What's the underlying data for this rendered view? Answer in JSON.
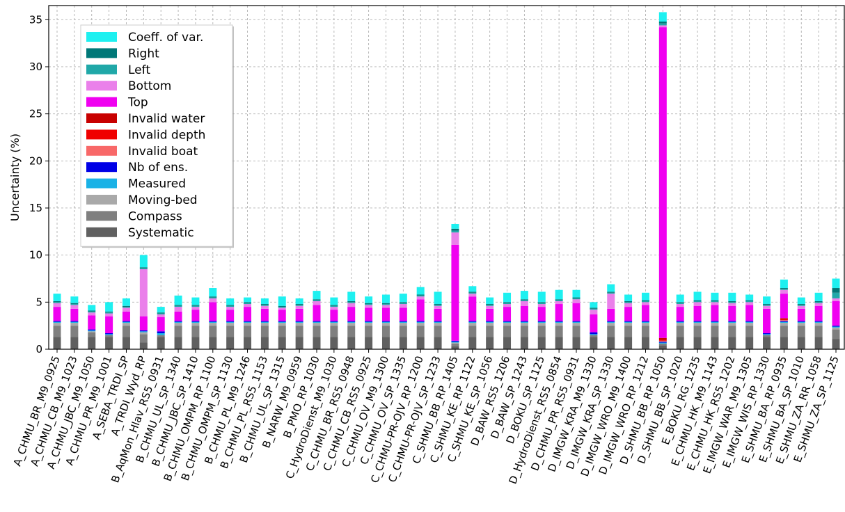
{
  "chart_data": {
    "type": "bar",
    "stacked": true,
    "ylabel": "Uncertainty (%)",
    "xlabel": "",
    "ylim": [
      0,
      36.5
    ],
    "yticks": [
      0,
      5,
      10,
      15,
      20,
      25,
      30,
      35
    ],
    "grid": true,
    "legend_position": "top-left",
    "categories": [
      "A_CHMU_BR_M9_0925",
      "A_CHMU_CB_M9_1023",
      "A_CHMU_JBC_M9_1050",
      "A_CHMU_PR_M9_1001",
      "A_SEBA_TRDI_SP",
      "A_TRDI_Wyd_RP",
      "B_AqMon_Hlav_RS5_0931",
      "B_CHMU_UL_SP_1340",
      "B_CHMU_JBC_SP_1410",
      "B_CHMU_OMPM_RP_1100",
      "B_CHMU_OMPM_SP_1130",
      "B_CHMU_PL_M9_1246",
      "B_CHMU_PL_RS5_1153",
      "B_CHMU_UL_SP_1315",
      "B_NARW_M9_0959",
      "B_PMO_RP_1030",
      "C_HydroDienst_M9_1030",
      "C_CHMU_BR_RS5_0948",
      "C_CHMU_CB_RS5_0925",
      "C_CHMU_OV_M9_1300",
      "C_CHMU_OV_SP_1335",
      "C_CHMU-PR-OJV_RP_1200",
      "C_CHMU-PR-OJV_SP_1233",
      "C_SHMU_BB_RP_1405",
      "C_SHMU_KE_RP_1122",
      "C_SHMU_KE_SP_1056",
      "D_BAW_RS5_1206",
      "D_BAW_SP_1243",
      "D_BOKU_SP_1125",
      "D_HydroDienst_RS5_0854",
      "D_CHMU_PR_RS5_0931",
      "D_IMGW_KRA_M9_1330",
      "D_IMGW_KRA_SP_1330",
      "D_IMGW_WRO_M9_1400",
      "D_IMGW_WRO_RP_1212",
      "D_SHMU_BB_RP_1050",
      "D_SHMU_BB_SP_1020",
      "E_BOKU_RG_1235",
      "E_CHMU_HK_M9_1143",
      "E_CHMU_HK_RS5_1202",
      "E_IMGW_WAR_M9_1305",
      "E_IMGW_WIS_RP_1330",
      "E_SHMU_BA_RP_0935",
      "E_SHMU_BA_SP_1010",
      "E_SHMU_ZA_RR_1058",
      "E_SHMU_ZA_SP_1125"
    ],
    "series": [
      {
        "name": "Systematic",
        "color": "#606060",
        "values": [
          1.3,
          1.3,
          1.3,
          1.3,
          1.3,
          0.7,
          1.3,
          1.3,
          1.3,
          1.3,
          1.3,
          1.3,
          1.3,
          1.3,
          1.3,
          1.3,
          1.3,
          1.3,
          1.3,
          1.3,
          1.3,
          1.3,
          1.3,
          0.3,
          1.3,
          1.3,
          1.3,
          1.3,
          1.3,
          1.3,
          1.3,
          1.3,
          1.3,
          1.3,
          1.3,
          0.4,
          1.3,
          1.3,
          1.3,
          1.3,
          1.3,
          1.3,
          1.3,
          1.3,
          1.3,
          1.1
        ]
      },
      {
        "name": "Compass",
        "color": "#7f7f7f",
        "values": [
          1.2,
          1.2,
          0.5,
          0.2,
          1.2,
          0.9,
          0.2,
          1.2,
          1.2,
          1.2,
          1.2,
          1.2,
          1.2,
          1.2,
          1.2,
          1.2,
          1.2,
          1.2,
          1.2,
          1.2,
          1.2,
          1.2,
          1.2,
          0.3,
          1.2,
          1.2,
          1.2,
          1.2,
          1.2,
          1.2,
          1.2,
          0.2,
          1.2,
          1.2,
          1.2,
          0.2,
          1.2,
          1.2,
          1.2,
          1.2,
          1.2,
          0.2,
          1.2,
          1.2,
          1.2,
          1.0
        ]
      },
      {
        "name": "Moving-bed",
        "color": "#a9a9a9",
        "values": [
          0.3,
          0.3,
          0.1,
          0.0,
          0.3,
          0.2,
          0.0,
          0.3,
          0.3,
          0.3,
          0.3,
          0.3,
          0.3,
          0.3,
          0.3,
          0.3,
          0.3,
          0.3,
          0.3,
          0.3,
          0.3,
          0.3,
          0.3,
          0.1,
          0.3,
          0.3,
          0.3,
          0.3,
          0.3,
          0.3,
          0.3,
          0.0,
          0.3,
          0.3,
          0.3,
          0.0,
          0.3,
          0.3,
          0.3,
          0.3,
          0.3,
          0.0,
          0.3,
          0.3,
          0.3,
          0.2
        ]
      },
      {
        "name": "Measured",
        "color": "#1ab2e6",
        "values": [
          0.1,
          0.1,
          0.1,
          0.1,
          0.1,
          0.1,
          0.2,
          0.1,
          0.1,
          0.1,
          0.1,
          0.1,
          0.1,
          0.1,
          0.1,
          0.1,
          0.1,
          0.1,
          0.1,
          0.1,
          0.1,
          0.1,
          0.1,
          0.1,
          0.1,
          0.1,
          0.1,
          0.1,
          0.1,
          0.1,
          0.1,
          0.1,
          0.1,
          0.1,
          0.1,
          0.1,
          0.1,
          0.1,
          0.1,
          0.1,
          0.1,
          0.1,
          0.1,
          0.1,
          0.1,
          0.1
        ]
      },
      {
        "name": "Nb of ens.",
        "color": "#0000e6",
        "values": [
          0.1,
          0.1,
          0.1,
          0.1,
          0.1,
          0.1,
          0.2,
          0.1,
          0.1,
          0.1,
          0.1,
          0.1,
          0.1,
          0.1,
          0.1,
          0.1,
          0.1,
          0.1,
          0.1,
          0.1,
          0.1,
          0.1,
          0.1,
          0.1,
          0.1,
          0.1,
          0.1,
          0.1,
          0.1,
          0.1,
          0.1,
          0.2,
          0.1,
          0.1,
          0.1,
          0.1,
          0.1,
          0.1,
          0.1,
          0.1,
          0.1,
          0.1,
          0.1,
          0.1,
          0.1,
          0.1
        ]
      },
      {
        "name": "Invalid boat",
        "color": "#f86868",
        "values": [
          0,
          0,
          0,
          0,
          0,
          0,
          0,
          0,
          0,
          0,
          0,
          0,
          0,
          0,
          0,
          0,
          0,
          0,
          0,
          0,
          0,
          0,
          0,
          0,
          0,
          0,
          0,
          0,
          0,
          0,
          0,
          0,
          0,
          0,
          0,
          0.1,
          0,
          0,
          0,
          0,
          0,
          0,
          0.1,
          0,
          0,
          0
        ]
      },
      {
        "name": "Invalid depth",
        "color": "#f00000",
        "values": [
          0,
          0,
          0,
          0,
          0,
          0,
          0,
          0,
          0,
          0,
          0,
          0,
          0,
          0,
          0,
          0,
          0,
          0,
          0,
          0,
          0,
          0,
          0,
          0,
          0,
          0,
          0,
          0,
          0,
          0,
          0,
          0,
          0,
          0,
          0,
          0.1,
          0,
          0,
          0,
          0,
          0,
          0,
          0.1,
          0,
          0,
          0
        ]
      },
      {
        "name": "Invalid water",
        "color": "#c80000",
        "values": [
          0,
          0,
          0,
          0,
          0,
          0,
          0,
          0,
          0,
          0,
          0,
          0,
          0,
          0,
          0,
          0,
          0,
          0,
          0,
          0,
          0,
          0,
          0,
          0,
          0,
          0,
          0,
          0,
          0,
          0,
          0,
          0,
          0,
          0,
          0,
          0.2,
          0,
          0,
          0,
          0,
          0,
          0,
          0.1,
          0,
          0,
          0
        ]
      },
      {
        "name": "Top",
        "color": "#f000f0",
        "values": [
          1.5,
          1.3,
          1.5,
          1.8,
          1.0,
          1.5,
          1.5,
          1.0,
          1.2,
          2.0,
          1.2,
          1.5,
          1.3,
          1.2,
          1.3,
          1.7,
          1.2,
          1.5,
          1.4,
          1.4,
          1.4,
          2.3,
          1.3,
          10.2,
          2.6,
          1.3,
          1.5,
          1.6,
          1.5,
          1.8,
          1.9,
          1.9,
          1.3,
          1.5,
          1.7,
          33.0,
          1.5,
          1.6,
          1.7,
          1.6,
          1.7,
          2.6,
          2.6,
          1.3,
          1.6,
          2.6
        ]
      },
      {
        "name": "Bottom",
        "color": "#ea80ea",
        "values": [
          0.4,
          0.4,
          0.3,
          0.3,
          0.4,
          5.0,
          0.3,
          0.5,
          0.3,
          0.4,
          0.3,
          0.3,
          0.3,
          0.2,
          0.3,
          0.4,
          0.3,
          0.4,
          0.3,
          0.3,
          0.4,
          0.3,
          0.3,
          1.3,
          0.3,
          0.3,
          0.3,
          0.5,
          0.3,
          0.3,
          0.4,
          0.5,
          1.6,
          0.4,
          0.3,
          0.2,
          0.3,
          0.4,
          0.3,
          0.3,
          0.3,
          0.3,
          0.4,
          0.3,
          0.3,
          0.3
        ]
      },
      {
        "name": "Left",
        "color": "#20a8a8",
        "values": [
          0.1,
          0.1,
          0.1,
          0.1,
          0.1,
          0.1,
          0.1,
          0.1,
          0.1,
          0.1,
          0.1,
          0.1,
          0.1,
          0.1,
          0.1,
          0.1,
          0.1,
          0.1,
          0.1,
          0.1,
          0.1,
          0.1,
          0.1,
          0.2,
          0.1,
          0.1,
          0.1,
          0.1,
          0.1,
          0.1,
          0.1,
          0.1,
          0.1,
          0.1,
          0.1,
          0.2,
          0.1,
          0.1,
          0.1,
          0.1,
          0.1,
          0.1,
          0.1,
          0.1,
          0.1,
          0.6
        ]
      },
      {
        "name": "Right",
        "color": "#007878",
        "values": [
          0.1,
          0.1,
          0.1,
          0.1,
          0.1,
          0.1,
          0.1,
          0.1,
          0.1,
          0.1,
          0.1,
          0.1,
          0.1,
          0.1,
          0.1,
          0.1,
          0.1,
          0.1,
          0.1,
          0.1,
          0.1,
          0.1,
          0.1,
          0.2,
          0.1,
          0.1,
          0.1,
          0.1,
          0.1,
          0.1,
          0.1,
          0.1,
          0.1,
          0.1,
          0.1,
          0.2,
          0.1,
          0.1,
          0.1,
          0.1,
          0.1,
          0.1,
          0.1,
          0.1,
          0.1,
          0.5
        ]
      },
      {
        "name": "Coeff. of var.",
        "color": "#1ef0f0",
        "values": [
          0.8,
          0.7,
          0.6,
          1.0,
          0.8,
          1.3,
          0.6,
          1.0,
          0.8,
          0.9,
          0.7,
          0.5,
          0.6,
          1.0,
          0.6,
          0.9,
          0.8,
          1.0,
          0.7,
          0.9,
          0.9,
          0.8,
          1.3,
          0.5,
          0.6,
          0.7,
          1.0,
          0.9,
          1.1,
          1.0,
          0.8,
          0.6,
          0.8,
          0.7,
          0.8,
          1.0,
          0.8,
          0.9,
          0.8,
          0.9,
          0.6,
          0.8,
          0.9,
          0.7,
          0.9,
          1.0
        ]
      }
    ],
    "legend_order": [
      "Coeff. of var.",
      "Right",
      "Left",
      "Bottom",
      "Top",
      "Invalid water",
      "Invalid depth",
      "Invalid boat",
      "Nb of ens.",
      "Measured",
      "Moving-bed",
      "Compass",
      "Systematic"
    ]
  }
}
